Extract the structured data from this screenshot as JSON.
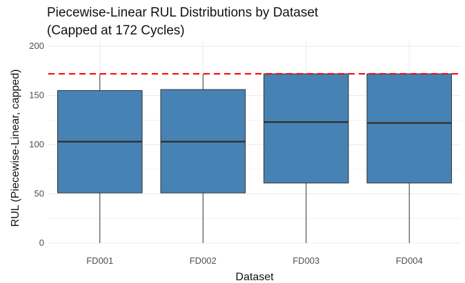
{
  "chart_data": {
    "type": "boxplot",
    "title": "Piecewise-Linear RUL Distributions by Dataset",
    "subtitle": "(Capped at 172 Cycles)",
    "xlabel": "Dataset",
    "ylabel": "RUL (Piecewise-Linear, capped)",
    "ylim": [
      0,
      205
    ],
    "yticks": [
      0,
      50,
      100,
      150,
      200
    ],
    "grid": true,
    "categories": [
      "FD001",
      "FD002",
      "FD003",
      "FD004"
    ],
    "boxes": [
      {
        "category": "FD001",
        "min": 0,
        "q1": 51,
        "median": 103,
        "q3": 155,
        "max": 172
      },
      {
        "category": "FD002",
        "min": 0,
        "q1": 51,
        "median": 103,
        "q3": 156,
        "max": 172
      },
      {
        "category": "FD003",
        "min": 0,
        "q1": 61,
        "median": 123,
        "q3": 172,
        "max": 172
      },
      {
        "category": "FD004",
        "min": 0,
        "q1": 61,
        "median": 122,
        "q3": 172,
        "max": 172
      }
    ],
    "reference_line": {
      "y": 172,
      "style": "dashed"
    },
    "colors": {
      "box_fill": "#4682B4",
      "box_stroke": "#333333",
      "reference_line": "#FF0000",
      "grid": "#EBEBEB"
    }
  }
}
